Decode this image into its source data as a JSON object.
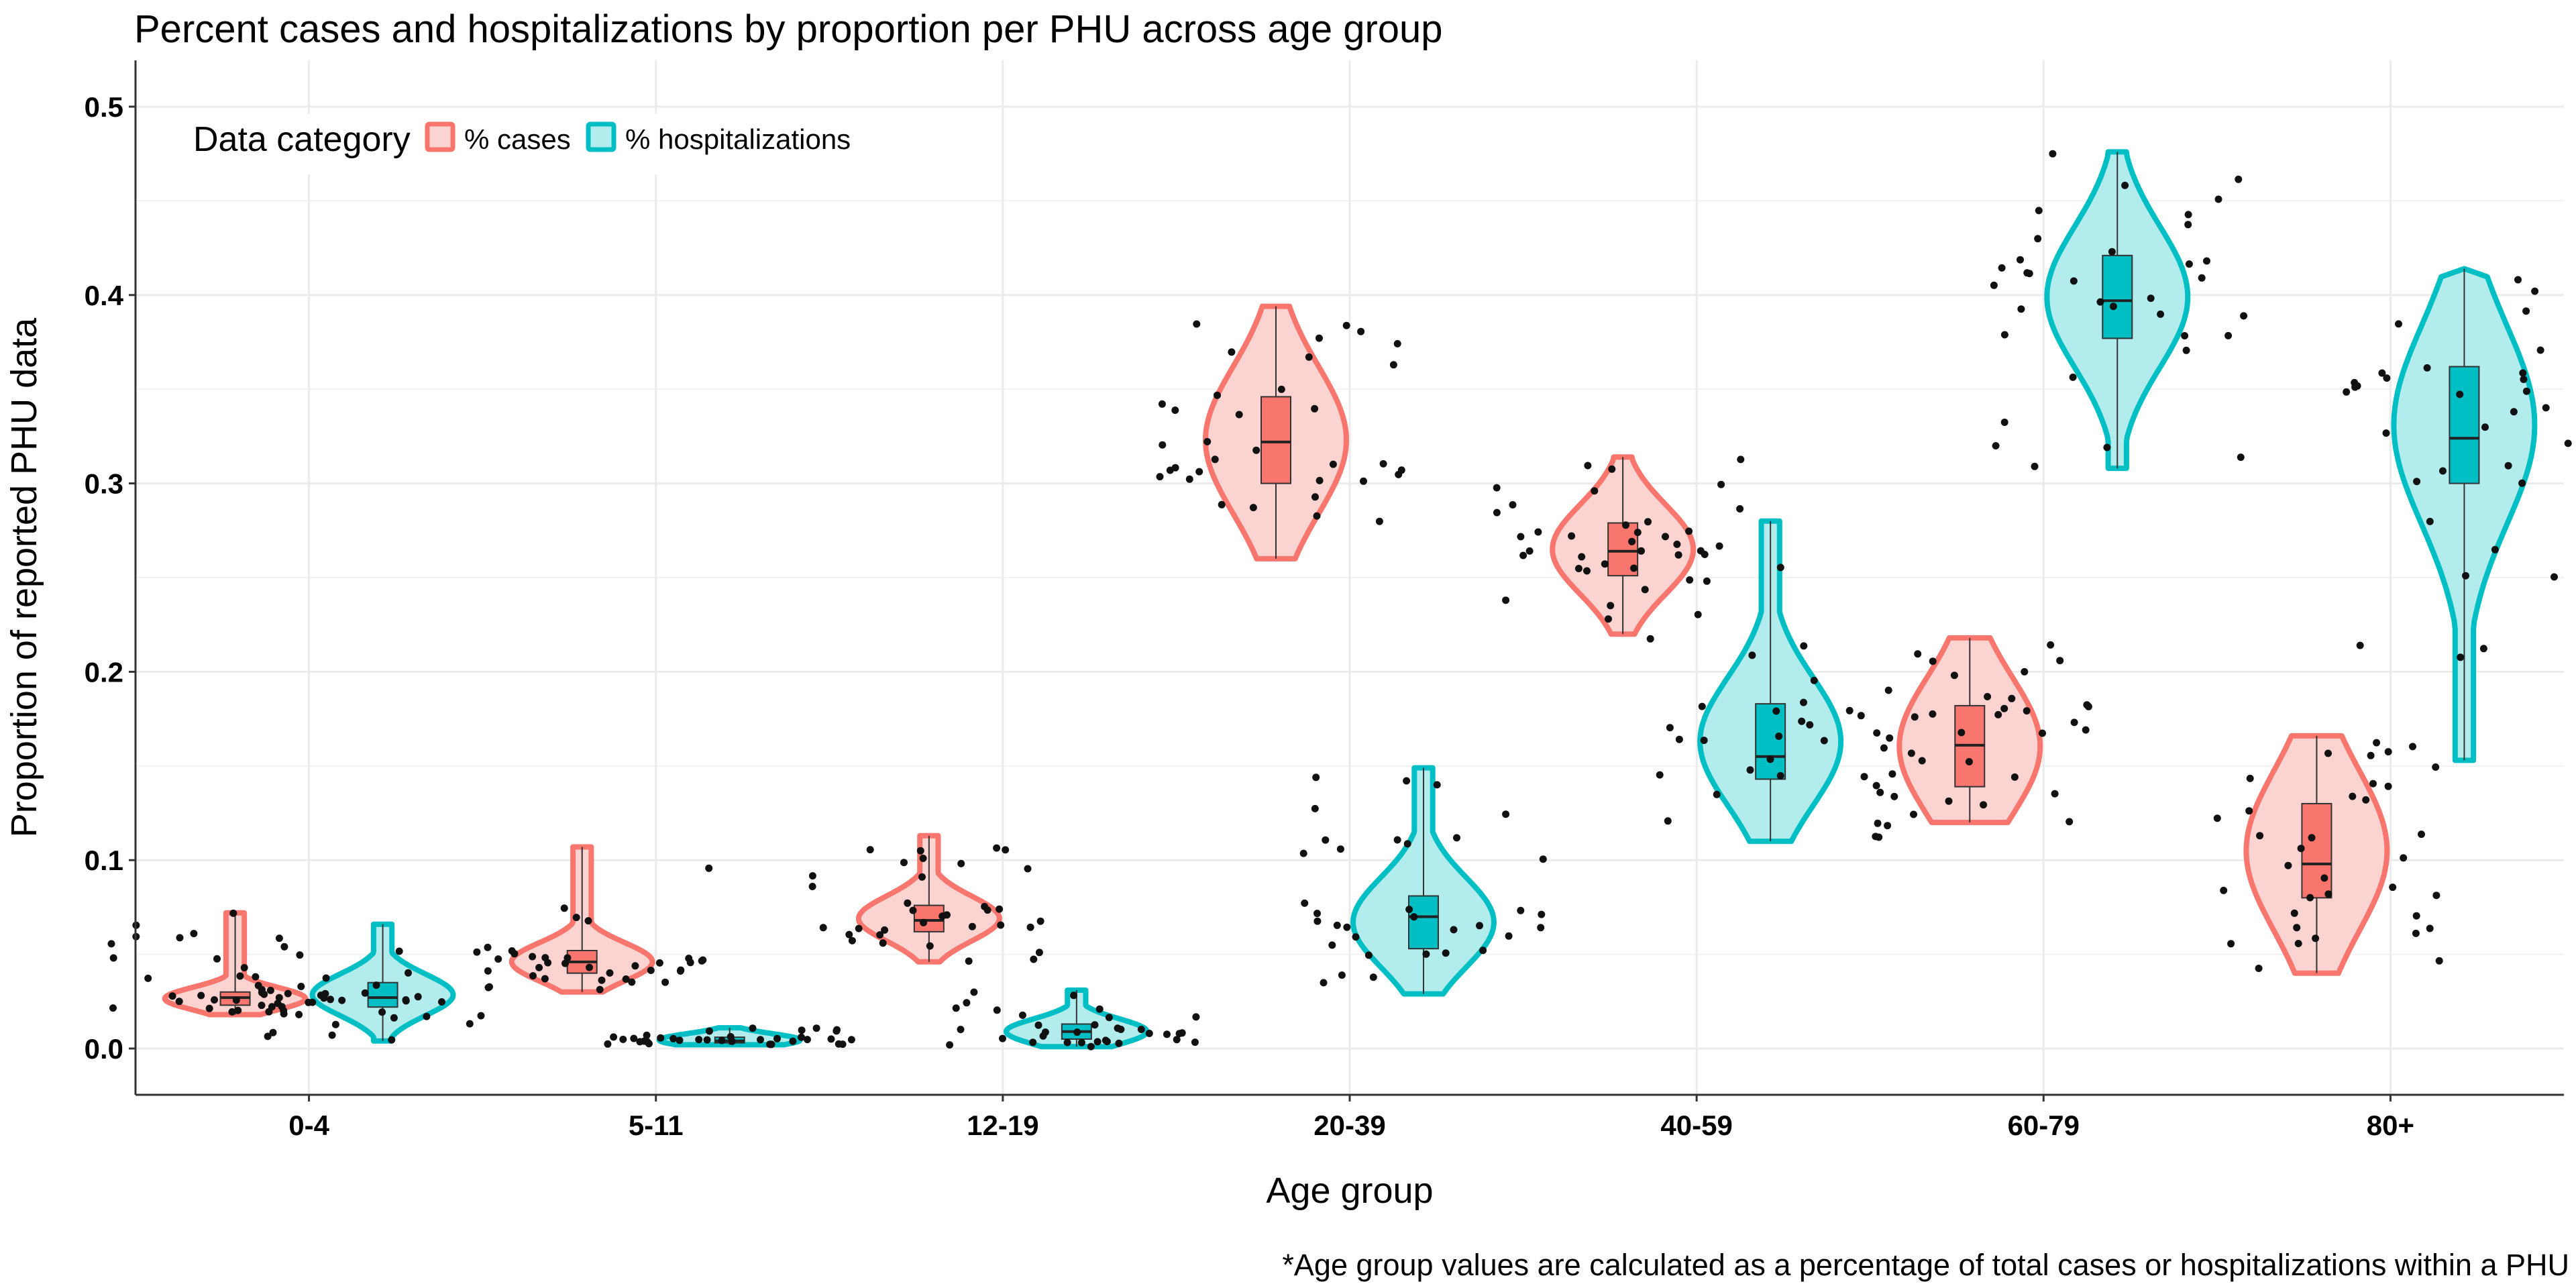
{
  "chart_data": {
    "type": "violin",
    "title": "Percent cases and hospitalizations by proportion per PHU across age group",
    "xlabel": "Age group",
    "ylabel": "Proportion of reported PHU data",
    "caption": "*Age group values are calculated as a percentage of total cases or hospitalizations within a PHU",
    "categories": [
      "0-4",
      "5-11",
      "12-19",
      "20-39",
      "40-59",
      "60-79",
      "80+"
    ],
    "ylim": [
      -0.025,
      0.525
    ],
    "yticks": [
      0.0,
      0.1,
      0.2,
      0.3,
      0.4,
      0.5
    ],
    "ytick_labels": [
      "0.0",
      "0.1",
      "0.2",
      "0.3",
      "0.4",
      "0.5"
    ],
    "grid": true,
    "legend": {
      "title": "Data category",
      "position": "top-left inside",
      "items": [
        "% cases",
        "% hospitalizations"
      ]
    },
    "series": [
      {
        "name": "% cases",
        "outline_color": "#F8766D",
        "fill_color": "#FBD3D0",
        "box_color": "#F8766D",
        "groups": [
          {
            "category": "0-4",
            "min": 0.018,
            "q1": 0.023,
            "median": 0.027,
            "q3": 0.03,
            "max": 0.072
          },
          {
            "category": "5-11",
            "min": 0.03,
            "q1": 0.04,
            "median": 0.046,
            "q3": 0.052,
            "max": 0.107
          },
          {
            "category": "12-19",
            "min": 0.046,
            "q1": 0.062,
            "median": 0.068,
            "q3": 0.076,
            "max": 0.113
          },
          {
            "category": "20-39",
            "min": 0.26,
            "q1": 0.3,
            "median": 0.322,
            "q3": 0.346,
            "max": 0.394
          },
          {
            "category": "40-59",
            "min": 0.22,
            "q1": 0.251,
            "median": 0.264,
            "q3": 0.279,
            "max": 0.314
          },
          {
            "category": "60-79",
            "min": 0.12,
            "q1": 0.139,
            "median": 0.161,
            "q3": 0.182,
            "max": 0.218
          },
          {
            "category": "80+",
            "min": 0.04,
            "q1": 0.08,
            "median": 0.098,
            "q3": 0.13,
            "max": 0.166
          }
        ]
      },
      {
        "name": "% hospitalizations",
        "outline_color": "#00BFC4",
        "fill_color": "#B3ECED",
        "box_color": "#00BFC4",
        "groups": [
          {
            "category": "0-4",
            "min": 0.004,
            "q1": 0.022,
            "median": 0.027,
            "q3": 0.035,
            "max": 0.066
          },
          {
            "category": "5-11",
            "min": 0.002,
            "q1": 0.003,
            "median": 0.004,
            "q3": 0.006,
            "max": 0.011
          },
          {
            "category": "12-19",
            "min": 0.001,
            "q1": 0.005,
            "median": 0.009,
            "q3": 0.013,
            "max": 0.031
          },
          {
            "category": "20-39",
            "min": 0.029,
            "q1": 0.053,
            "median": 0.07,
            "q3": 0.081,
            "max": 0.149
          },
          {
            "category": "40-59",
            "min": 0.11,
            "q1": 0.143,
            "median": 0.155,
            "q3": 0.183,
            "max": 0.28
          },
          {
            "category": "60-79",
            "min": 0.308,
            "q1": 0.377,
            "median": 0.397,
            "q3": 0.421,
            "max": 0.476
          },
          {
            "category": "80+",
            "min": 0.153,
            "q1": 0.3,
            "median": 0.324,
            "q3": 0.362,
            "max": 0.414
          }
        ]
      }
    ]
  }
}
